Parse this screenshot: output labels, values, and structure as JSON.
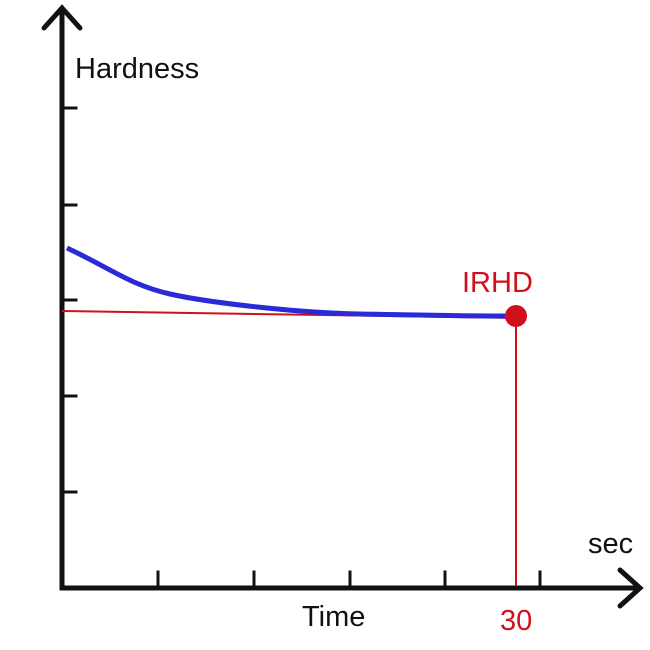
{
  "axis_labels": {
    "y": "Hardness",
    "x": "Time",
    "x_unit": "sec"
  },
  "marker": {
    "label": "IRHD",
    "time": "30"
  }
}
